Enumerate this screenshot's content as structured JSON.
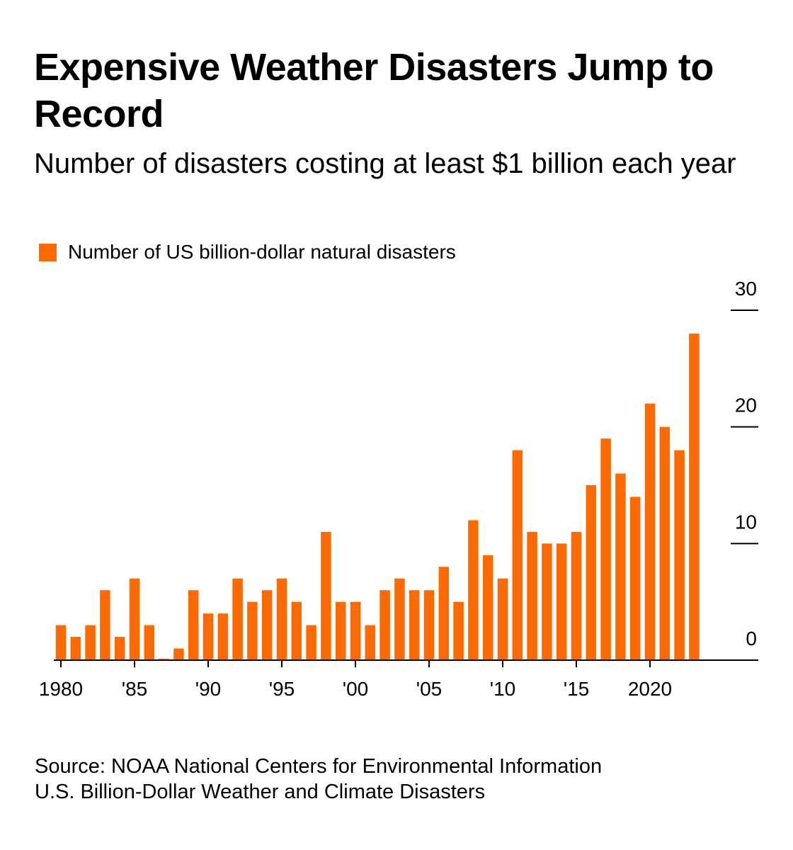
{
  "title": "Expensive Weather Disasters Jump to Record",
  "subtitle": "Number of disasters costing at least $1 billion each year",
  "legend": {
    "label": "Number of US billion-dollar natural disasters"
  },
  "colors": {
    "bar": "#ff6a00",
    "axis": "#000000"
  },
  "source": {
    "line1": "Source: NOAA National Centers for Environmental Information",
    "line2": "U.S. Billion-Dollar Weather and Climate Disasters"
  },
  "chart_data": {
    "type": "bar",
    "title": "Expensive Weather Disasters Jump to Record",
    "subtitle": "Number of disasters costing at least $1 billion each year",
    "xlabel": "",
    "ylabel": "",
    "ylim": [
      0,
      30
    ],
    "y_ticks": [
      0,
      10,
      20,
      30
    ],
    "y_axis_position": "right",
    "grid": false,
    "legend_position": "top-left",
    "x_tick_labels": [
      {
        "year": 1980,
        "label": "1980"
      },
      {
        "year": 1985,
        "label": "'85"
      },
      {
        "year": 1990,
        "label": "'90"
      },
      {
        "year": 1995,
        "label": "'95"
      },
      {
        "year": 2000,
        "label": "'00"
      },
      {
        "year": 2005,
        "label": "'05"
      },
      {
        "year": 2010,
        "label": "'10"
      },
      {
        "year": 2015,
        "label": "'15"
      },
      {
        "year": 2020,
        "label": "2020"
      }
    ],
    "categories": [
      1980,
      1981,
      1982,
      1983,
      1984,
      1985,
      1986,
      1987,
      1988,
      1989,
      1990,
      1991,
      1992,
      1993,
      1994,
      1995,
      1996,
      1997,
      1998,
      1999,
      2000,
      2001,
      2002,
      2003,
      2004,
      2005,
      2006,
      2007,
      2008,
      2009,
      2010,
      2011,
      2012,
      2013,
      2014,
      2015,
      2016,
      2017,
      2018,
      2019,
      2020,
      2021,
      2022,
      2023
    ],
    "series": [
      {
        "name": "Number of US billion-dollar natural disasters",
        "values": [
          3,
          2,
          3,
          6,
          2,
          7,
          3,
          0,
          1,
          6,
          4,
          4,
          7,
          5,
          6,
          7,
          5,
          3,
          11,
          5,
          5,
          3,
          6,
          7,
          6,
          6,
          8,
          5,
          12,
          9,
          7,
          18,
          11,
          10,
          10,
          11,
          15,
          19,
          16,
          14,
          22,
          20,
          18,
          28
        ]
      }
    ]
  }
}
